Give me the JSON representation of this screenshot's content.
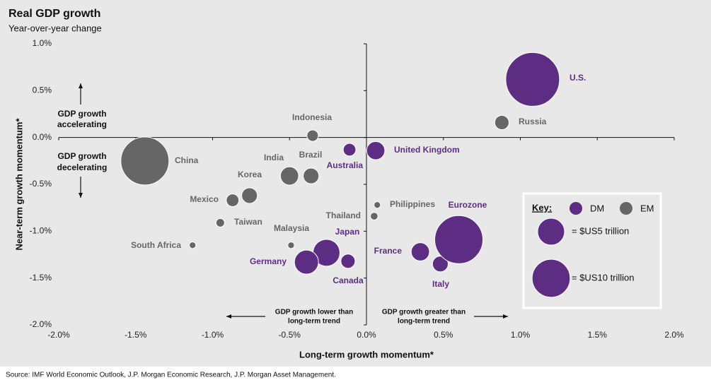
{
  "chart_data": {
    "type": "bubble",
    "title": "Real GDP growth",
    "subtitle": "Year-over-year change",
    "x_label": "Long-term growth momentum*",
    "y_label": "Near-term growth momentum*",
    "xlim": [
      -2.0,
      2.0
    ],
    "xticks": [
      {
        "value": -2.0,
        "label": "-2.0%"
      },
      {
        "value": -1.5,
        "label": "-1.5%"
      },
      {
        "value": -1.0,
        "label": "-1.0%"
      },
      {
        "value": -0.5,
        "label": "-0.5%"
      },
      {
        "value": 0,
        "label": "0.0%"
      },
      {
        "value": 0.5,
        "label": "0.5%"
      },
      {
        "value": 1.0,
        "label": "1.0%"
      },
      {
        "value": 1.5,
        "label": "1.5%"
      },
      {
        "value": 2.0,
        "label": "2.0%"
      }
    ],
    "ylim": [
      -2.0,
      1.0
    ],
    "yticks": [
      {
        "value": 1.0,
        "label": "1.0%"
      },
      {
        "value": 0.5,
        "label": "0.5%"
      },
      {
        "value": 0,
        "label": "0.0%"
      },
      {
        "value": -0.5,
        "label": "-0.5%"
      },
      {
        "value": -1.0,
        "label": "-1.0%"
      },
      {
        "value": -1.5,
        "label": "-1.5%"
      },
      {
        "value": -2.0,
        "label": "-2.0%"
      }
    ],
    "series": [
      {
        "name": "DM",
        "color": "#5c2d83",
        "labels": [
          "U.S.",
          "United Kingdom",
          "Australia",
          "Japan",
          "Germany",
          "Canada",
          "France",
          "Italy",
          "Eurozone"
        ],
        "x": [
          1.08,
          0.06,
          -0.11,
          -0.26,
          -0.39,
          -0.12,
          0.35,
          0.48,
          0.6
        ],
        "values": [
          0.62,
          -0.14,
          -0.13,
          -1.23,
          -1.33,
          -1.32,
          -1.22,
          -1.35,
          -1.09
        ],
        "sizes": [
          20,
          2.3,
          1.1,
          5,
          4,
          1.4,
          2.3,
          1.7,
          16
        ]
      },
      {
        "name": "EM",
        "color": "#666666",
        "labels": [
          "Russia",
          "Indonesia",
          "China",
          "India",
          "Brazil",
          "Korea",
          "Mexico",
          "Taiwan",
          "South Africa",
          "Malaysia",
          "Thailand",
          "Philippines"
        ],
        "x": [
          0.88,
          -0.35,
          -1.44,
          -0.5,
          -0.36,
          -0.76,
          -0.87,
          -0.95,
          -1.13,
          -0.49,
          0.05,
          0.07
        ],
        "values": [
          0.16,
          0.02,
          -0.25,
          -0.41,
          -0.41,
          -0.62,
          -0.67,
          -0.91,
          -1.15,
          -1.15,
          -0.84,
          -0.72
        ],
        "sizes": [
          1.4,
          0.9,
          16,
          2.3,
          1.7,
          1.7,
          1.1,
          0.5,
          0.3,
          0.3,
          0.4,
          0.3
        ]
      }
    ],
    "key": {
      "title": "Key:",
      "sizes": [
        {
          "value": 5,
          "label": "= $US5 trillion"
        },
        {
          "value": 10,
          "label": "= $US10 trillion"
        }
      ]
    },
    "annotations": [
      {
        "lines": [
          "GDP growth",
          "accelerating"
        ]
      },
      {
        "lines": [
          "GDP growth",
          "decelerating"
        ]
      },
      {
        "lines": [
          "GDP growth lower than",
          "long-term trend"
        ]
      },
      {
        "lines": [
          "GDP growth greater than",
          "long-term trend"
        ]
      }
    ],
    "source": "Source: IMF World Economic Outlook, J.P. Morgan Economic Research, J.P. Morgan Asset Management."
  }
}
